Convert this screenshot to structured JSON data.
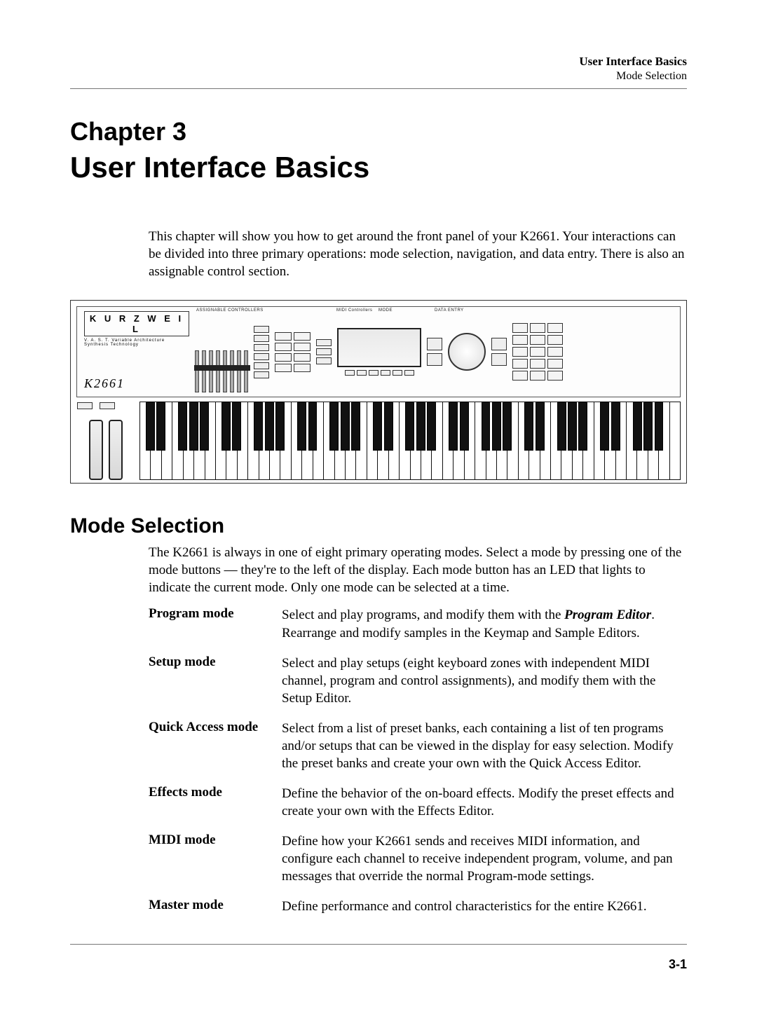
{
  "running_head": {
    "title": "User Interface Basics",
    "subtitle": "Mode Selection"
  },
  "chapter": {
    "label": "Chapter 3",
    "title": "User Interface Basics"
  },
  "intro_paragraph": "This chapter will show you how to get around the front panel of your K2661. Your interactions can be divided into three primary operations:  mode selection, navigation, and data entry. There is also an assignable control section.",
  "figure": {
    "brand": "K U R Z W E I L",
    "sub_brand": "V. A. S. T.  Variable Architecture Synthesis Technology",
    "model": "K2661",
    "panel_labels": {
      "controllers": "ASSIGNABLE CONTROLLERS",
      "midi": "MIDI Controllers",
      "mode": "MODE",
      "data": "DATA ENTRY"
    },
    "slider_count": 8,
    "wheel_count": 2,
    "white_key_count": 50,
    "black_pattern": [
      1,
      1,
      0,
      1,
      1,
      1,
      0
    ]
  },
  "section": {
    "heading": "Mode Selection",
    "intro": "The K2661 is always in one of eight primary operating modes. Select a mode by pressing one of the mode buttons — they're to the left of the display. Each mode button has an LED that lights to indicate the current mode. Only one mode can be selected at a time.",
    "modes": [
      {
        "name": "Program mode",
        "desc_pre": "Select and play programs, and modify them with the ",
        "desc_em": "Program Editor",
        "desc_post": ". Rearrange and modify samples in the Keymap and Sample Editors."
      },
      {
        "name": "Setup mode",
        "desc": "Select and play setups (eight keyboard zones with independent MIDI channel, program and control assignments), and modify them with the Setup Editor."
      },
      {
        "name": "Quick Access mode",
        "desc": "Select from a list of preset banks, each containing a list of ten programs and/or setups that can be viewed in the display for easy selection. Modify the preset banks and create your own with the Quick Access Editor."
      },
      {
        "name": "Effects mode",
        "desc": "Define the behavior of the on-board effects. Modify the preset effects and create your own with the Effects Editor."
      },
      {
        "name": "MIDI mode",
        "desc": "Define how your K2661 sends and receives MIDI information, and configure each channel to receive independent program, volume, and pan messages that override the normal Program-mode settings."
      },
      {
        "name": "Master mode",
        "desc": "Define performance and control characteristics for the entire K2661."
      }
    ]
  },
  "page_number": "3-1"
}
